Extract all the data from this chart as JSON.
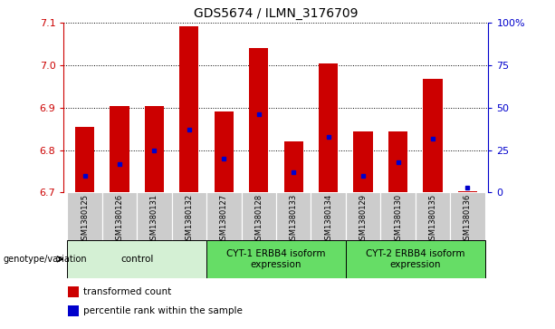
{
  "title": "GDS5674 / ILMN_3176709",
  "samples": [
    "GSM1380125",
    "GSM1380126",
    "GSM1380131",
    "GSM1380132",
    "GSM1380127",
    "GSM1380128",
    "GSM1380133",
    "GSM1380134",
    "GSM1380129",
    "GSM1380130",
    "GSM1380135",
    "GSM1380136"
  ],
  "red_values": [
    6.855,
    6.905,
    6.905,
    7.093,
    6.892,
    7.042,
    6.82,
    7.005,
    6.845,
    6.845,
    6.968,
    6.703
  ],
  "blue_values_pct": [
    10,
    17,
    25,
    37,
    20,
    46,
    12,
    33,
    10,
    18,
    32,
    3
  ],
  "ylim": [
    6.7,
    7.1
  ],
  "y2lim": [
    0,
    100
  ],
  "yticks": [
    6.7,
    6.8,
    6.9,
    7.0,
    7.1
  ],
  "y2ticks": [
    0,
    25,
    50,
    75,
    100
  ],
  "red_color": "#cc0000",
  "blue_color": "#0000cc",
  "bar_bottom": 6.7,
  "groups": [
    {
      "label": "control",
      "start": 0,
      "end": 4,
      "color": "#d4f0d4"
    },
    {
      "label": "CYT-1 ERBB4 isoform\nexpression",
      "start": 4,
      "end": 8,
      "color": "#66dd66"
    },
    {
      "label": "CYT-2 ERBB4 isoform\nexpression",
      "start": 8,
      "end": 12,
      "color": "#66dd66"
    }
  ],
  "xticklabel_bg": "#cccccc",
  "legend_items": [
    {
      "color": "#cc0000",
      "label": "transformed count"
    },
    {
      "color": "#0000cc",
      "label": "percentile rank within the sample"
    }
  ],
  "genotype_label": "genotype/variation",
  "bar_width": 0.55
}
